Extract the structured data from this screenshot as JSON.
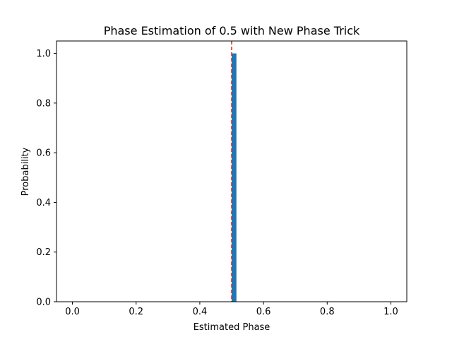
{
  "chart_data": {
    "type": "bar",
    "title": "Phase Estimation of 0.5 with New Phase Trick",
    "xlabel": "Estimated Phase",
    "ylabel": "Probability",
    "xlim": [
      -0.05,
      1.05
    ],
    "ylim": [
      0.0,
      1.05
    ],
    "xticks": [
      0.0,
      0.2,
      0.4,
      0.6,
      0.8,
      1.0
    ],
    "xtick_labels": [
      "0.0",
      "0.2",
      "0.4",
      "0.6",
      "0.8",
      "1.0"
    ],
    "yticks": [
      0.0,
      0.2,
      0.4,
      0.6,
      0.8,
      1.0
    ],
    "ytick_labels": [
      "0.0",
      "0.2",
      "0.4",
      "0.6",
      "0.8",
      "1.0"
    ],
    "bars": [
      {
        "x": 0.5,
        "x_end": 0.515,
        "value": 1.0,
        "color": "#1f77b4"
      }
    ],
    "reference_line": {
      "x": 0.5,
      "color": "#d62728",
      "style": "dashed"
    },
    "grid": false,
    "legend": "none"
  }
}
